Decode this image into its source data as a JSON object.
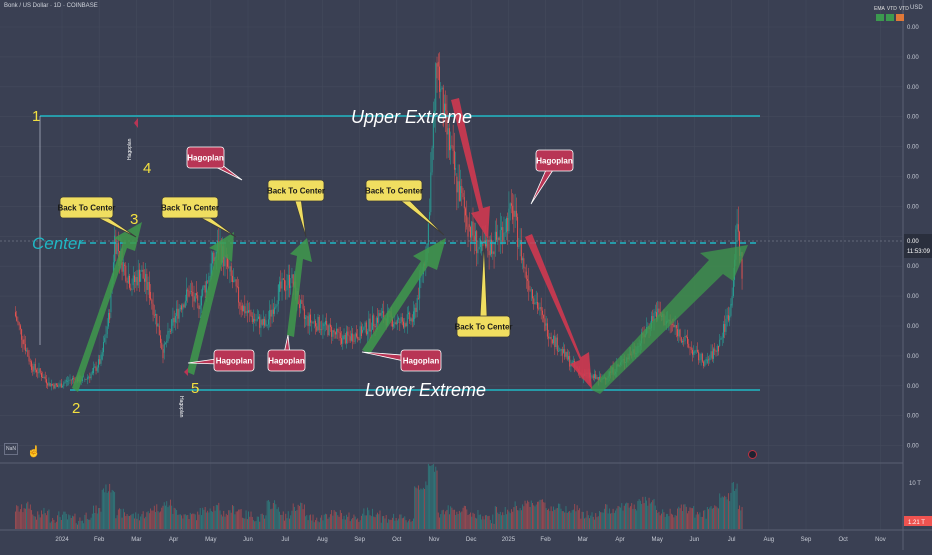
{
  "header": {
    "symbol_title": "Bonk / US Dollar · 1D · COINBASE",
    "price_scale_unit": "USD",
    "badges": [
      "EMA",
      "VTD",
      "VTD"
    ],
    "colors": {
      "background": "#3a4053",
      "grid": "#464c5f",
      "bull": "#26a69a",
      "bear": "#ef5350",
      "teal": "#1fb7c4"
    }
  },
  "y_axis": {
    "labels": [
      "0.00",
      "0.00",
      "0.00",
      "0.00",
      "0.00",
      "0.00",
      "0.00",
      "0.00",
      "0.00",
      "0.00",
      "0.00",
      "0.00",
      "0.00",
      "0.00",
      "0.00"
    ],
    "last_price": "0.00",
    "countdown": "11:53:09"
  },
  "volume_axis": {
    "label": "10 T",
    "current_volume": "1.21 T"
  },
  "x_axis": {
    "labels": [
      "2024",
      "Feb",
      "Mar",
      "Apr",
      "May",
      "Jun",
      "Jul",
      "Aug",
      "Sep",
      "Oct",
      "Nov",
      "Dec",
      "2025",
      "Feb",
      "Mar",
      "Apr",
      "May",
      "Jun",
      "Jul",
      "Aug",
      "Sep",
      "Oct",
      "Nov"
    ]
  },
  "annotations": {
    "upper_extreme": "Upper Extreme",
    "lower_extreme": "Lower Extreme",
    "center": "Center",
    "point_labels": [
      "1",
      "2",
      "3",
      "4",
      "5"
    ],
    "callouts": [
      {
        "text": "Back To Center",
        "style": "yellow"
      },
      {
        "text": "Back To Center",
        "style": "yellow"
      },
      {
        "text": "Back To Center",
        "style": "yellow"
      },
      {
        "text": "Back To Center",
        "style": "yellow"
      },
      {
        "text": "Back To Center",
        "style": "yellow"
      },
      {
        "text": "Hagoplan",
        "style": "red"
      },
      {
        "text": "Hagoplan",
        "style": "red"
      },
      {
        "text": "Hagoplan",
        "style": "red"
      },
      {
        "text": "Hagoplan",
        "style": "red"
      },
      {
        "text": "Hagoplan",
        "style": "red"
      }
    ],
    "rotated_labels": [
      "Hagoplan",
      "Hagoplan"
    ]
  },
  "footer": {
    "nav_button": "NaN"
  },
  "chart_data": {
    "type": "line",
    "title": "Bonk / US Dollar · 1D · COINBASE",
    "price_points": [
      {
        "x": "2023-12-15",
        "y": 2e-05
      },
      {
        "x": "2023-12-22",
        "y": 1.6e-05
      },
      {
        "x": "2023-12-29",
        "y": 1.2e-05
      },
      {
        "x": "2024-01-05",
        "y": 1.1e-05
      },
      {
        "x": "2024-01-12",
        "y": 9.5e-06
      },
      {
        "x": "2024-01-19",
        "y": 9e-06
      },
      {
        "x": "2024-01-26",
        "y": 9.8e-06
      },
      {
        "x": "2024-02-02",
        "y": 1.02e-05
      },
      {
        "x": "2024-02-09",
        "y": 1e-05
      },
      {
        "x": "2024-02-16",
        "y": 1.1e-05
      },
      {
        "x": "2024-02-23",
        "y": 1.3e-05
      },
      {
        "x": "2024-03-01",
        "y": 2e-05
      },
      {
        "x": "2024-03-05",
        "y": 3.1e-05
      },
      {
        "x": "2024-03-12",
        "y": 2.7e-05
      },
      {
        "x": "2024-03-19",
        "y": 2.4e-05
      },
      {
        "x": "2024-03-26",
        "y": 2.6e-05
      },
      {
        "x": "2024-04-02",
        "y": 2.3e-05
      },
      {
        "x": "2024-04-09",
        "y": 1.8e-05
      },
      {
        "x": "2024-04-13",
        "y": 1.4e-05
      },
      {
        "x": "2024-04-20",
        "y": 1.8e-05
      },
      {
        "x": "2024-04-27",
        "y": 2.1e-05
      },
      {
        "x": "2024-05-04",
        "y": 2.3e-05
      },
      {
        "x": "2024-05-11",
        "y": 2.1e-05
      },
      {
        "x": "2024-05-18",
        "y": 2.45e-05
      },
      {
        "x": "2024-05-28",
        "y": 3e-05
      },
      {
        "x": "2024-06-05",
        "y": 2.6e-05
      },
      {
        "x": "2024-06-15",
        "y": 2.1e-05
      },
      {
        "x": "2024-06-25",
        "y": 1.9e-05
      },
      {
        "x": "2024-07-05",
        "y": 1.8e-05
      },
      {
        "x": "2024-07-15",
        "y": 2.3e-05
      },
      {
        "x": "2024-07-25",
        "y": 2.5e-05
      },
      {
        "x": "2024-08-05",
        "y": 1.9e-05
      },
      {
        "x": "2024-08-20",
        "y": 1.8e-05
      },
      {
        "x": "2024-09-05",
        "y": 1.6e-05
      },
      {
        "x": "2024-09-20",
        "y": 1.7e-05
      },
      {
        "x": "2024-10-05",
        "y": 1.95e-05
      },
      {
        "x": "2024-10-20",
        "y": 1.85e-05
      },
      {
        "x": "2024-11-01",
        "y": 1.9e-05
      },
      {
        "x": "2024-11-12",
        "y": 3e-05
      },
      {
        "x": "2024-11-20",
        "y": 5.7e-05
      },
      {
        "x": "2024-11-25",
        "y": 4.9e-05
      },
      {
        "x": "2024-12-05",
        "y": 4e-05
      },
      {
        "x": "2024-12-15",
        "y": 3.3e-05
      },
      {
        "x": "2024-12-25",
        "y": 2.9e-05
      },
      {
        "x": "2025-01-05",
        "y": 3e-05
      },
      {
        "x": "2025-01-20",
        "y": 3.5e-05
      },
      {
        "x": "2025-01-30",
        "y": 2.6e-05
      },
      {
        "x": "2025-02-15",
        "y": 1.8e-05
      },
      {
        "x": "2025-03-01",
        "y": 1.4e-05
      },
      {
        "x": "2025-03-15",
        "y": 1.1e-05
      },
      {
        "x": "2025-04-01",
        "y": 1e-05
      },
      {
        "x": "2025-04-15",
        "y": 1.2e-05
      },
      {
        "x": "2025-05-01",
        "y": 1.5e-05
      },
      {
        "x": "2025-05-15",
        "y": 2e-05
      },
      {
        "x": "2025-06-01",
        "y": 1.75e-05
      },
      {
        "x": "2025-06-15",
        "y": 1.4e-05
      },
      {
        "x": "2025-06-25",
        "y": 1.25e-05
      },
      {
        "x": "2025-07-05",
        "y": 1.5e-05
      },
      {
        "x": "2025-07-15",
        "y": 2.1e-05
      },
      {
        "x": "2025-07-20",
        "y": 3.3e-05
      },
      {
        "x": "2025-07-24",
        "y": 2.6e-05
      }
    ],
    "reference_levels": [
      {
        "label": "Upper Extreme",
        "y": 4.9e-05
      },
      {
        "label": "Center",
        "y": 2.7e-05
      },
      {
        "label": "Lower Extreme",
        "y": 8.5e-06
      }
    ],
    "xlim": [
      "2023-12-10",
      "2025-11-30"
    ],
    "grid": true,
    "legend": "none"
  }
}
